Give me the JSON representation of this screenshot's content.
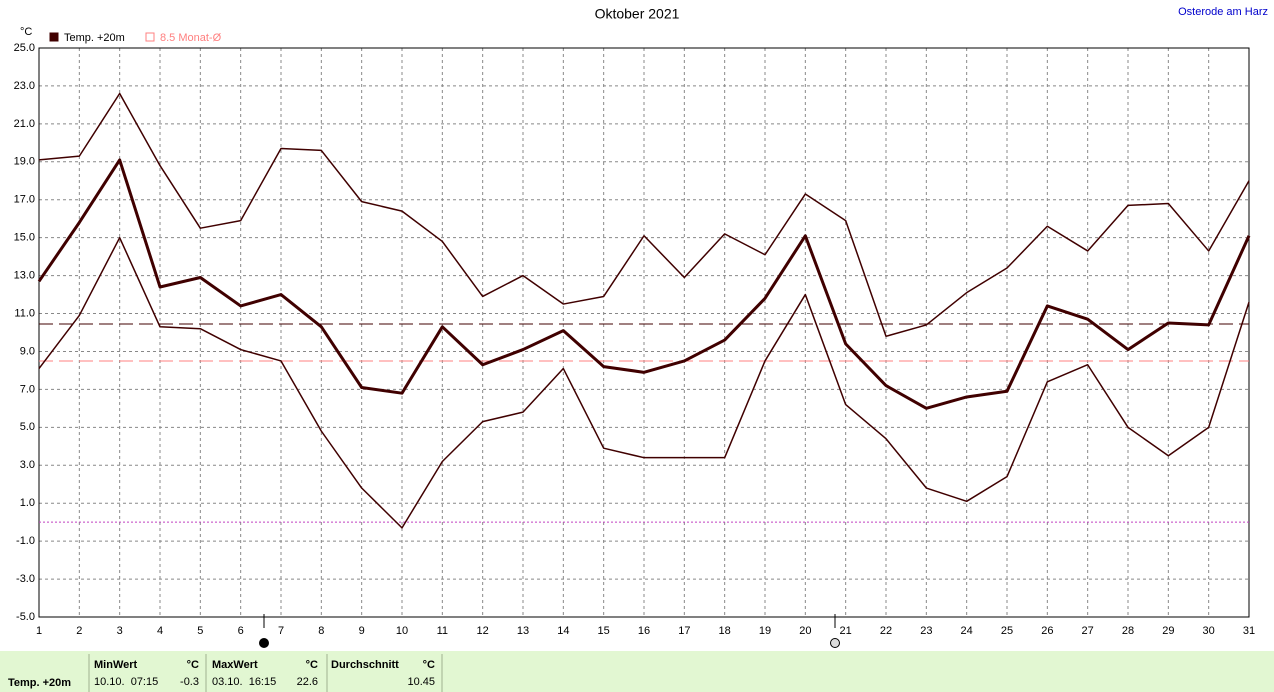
{
  "chart_data": {
    "type": "line",
    "title": "Oktober 2021",
    "location": "Osterode am Harz",
    "y_unit": "°C",
    "x": [
      1,
      2,
      3,
      4,
      5,
      6,
      7,
      8,
      9,
      10,
      11,
      12,
      13,
      14,
      15,
      16,
      17,
      18,
      19,
      20,
      21,
      22,
      23,
      24,
      25,
      26,
      27,
      28,
      29,
      30,
      31
    ],
    "series": [
      {
        "color": "#400000",
        "width": 1.5,
        "values": [
          19.1,
          19.3,
          22.6,
          18.8,
          15.5,
          15.9,
          19.7,
          19.6,
          16.9,
          16.4,
          14.8,
          11.9,
          13.0,
          11.5,
          11.9,
          15.1,
          12.9,
          15.2,
          14.1,
          17.3,
          15.9,
          9.8,
          10.4,
          12.1,
          13.4,
          15.6,
          14.3,
          16.7,
          16.8,
          14.3,
          18.0
        ]
      },
      {
        "color": "#400000",
        "width": 3,
        "values": [
          12.7,
          15.8,
          19.1,
          12.4,
          12.9,
          11.4,
          12.0,
          10.3,
          7.1,
          6.8,
          10.3,
          8.3,
          9.1,
          10.1,
          8.2,
          7.9,
          8.5,
          9.6,
          11.8,
          15.1,
          9.4,
          7.2,
          6.0,
          6.6,
          6.9,
          11.4,
          10.7,
          9.1,
          10.5,
          10.4,
          15.1
        ]
      },
      {
        "color": "#400000",
        "width": 1.5,
        "values": [
          8.1,
          10.9,
          15.0,
          10.3,
          10.2,
          9.1,
          8.5,
          4.8,
          1.8,
          -0.3,
          3.2,
          5.3,
          5.8,
          8.1,
          3.9,
          3.4,
          3.4,
          3.4,
          8.5,
          12.0,
          6.2,
          4.4,
          1.8,
          1.1,
          2.4,
          7.4,
          8.3,
          5.0,
          3.5,
          5.0,
          11.6
        ]
      }
    ],
    "reference_lines": [
      {
        "value": 10.45,
        "color": "#400000",
        "dash": "14,6"
      },
      {
        "value": 8.5,
        "color": "#ff8080",
        "dash": "14,6"
      },
      {
        "value": 0,
        "color": "#c040c0",
        "dash": "2,2"
      }
    ],
    "legend": [
      {
        "label": "Temp. +20m",
        "color": "#400000",
        "filled": true
      },
      {
        "label": "8.5 Monat-Ø",
        "color": "#ff8080",
        "filled": false
      }
    ],
    "xlim": [
      1,
      31
    ],
    "xticks": [
      1,
      2,
      3,
      4,
      5,
      6,
      7,
      8,
      9,
      10,
      11,
      12,
      13,
      14,
      15,
      16,
      17,
      18,
      19,
      20,
      21,
      22,
      23,
      24,
      25,
      26,
      27,
      28,
      29,
      30,
      31
    ],
    "ylim": [
      -5,
      25
    ],
    "yticks": [
      {
        "value": -5,
        "label": "-5.0"
      },
      {
        "value": -3,
        "label": "-3.0"
      },
      {
        "value": -1,
        "label": "-1.0"
      },
      {
        "value": 1,
        "label": "1.0"
      },
      {
        "value": 3,
        "label": "3.0"
      },
      {
        "value": 5,
        "label": "5.0"
      },
      {
        "value": 7,
        "label": "7.0"
      },
      {
        "value": 9,
        "label": "9.0"
      },
      {
        "value": 11,
        "label": "11.0"
      },
      {
        "value": 13,
        "label": "13.0"
      },
      {
        "value": 15,
        "label": "15.0"
      },
      {
        "value": 17,
        "label": "17.0"
      },
      {
        "value": 19,
        "label": "19.0"
      },
      {
        "value": 21,
        "label": "21.0"
      },
      {
        "value": 23,
        "label": "23.0"
      },
      {
        "value": 25,
        "label": "25.0"
      }
    ],
    "grid": true
  },
  "footer": {
    "sensor": "Temp. +20m",
    "min": {
      "title": "MinWert",
      "unit": "°C",
      "time": "10.10.  07:15",
      "value": "-0.3"
    },
    "max": {
      "title": "MaxWert",
      "unit": "°C",
      "time": "03.10.  16:15",
      "value": "22.6"
    },
    "avg": {
      "title": "Durchschnitt",
      "unit": "°C",
      "value": "10.45"
    }
  }
}
